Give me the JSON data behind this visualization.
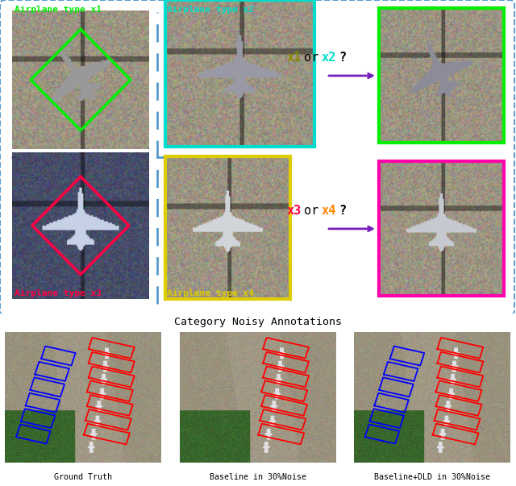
{
  "title_noisy": "Category Noisy Annotations",
  "label_x1": "Airplane type x1",
  "label_x2": "Airplane type x2",
  "label_x3": "Airplane type x3",
  "label_x4": "Airplane type x4",
  "caption1": "Ground Truth",
  "caption2": "Baseline in 30%Noise",
  "caption3": "Baseline+DLD in 30%Noise",
  "color_green": "#00ee00",
  "color_cyan": "#00ddcc",
  "color_red": "#ff0044",
  "color_yellow_border": "#ddcc00",
  "color_magenta": "#ff00aa",
  "color_purple": "#7722bb",
  "color_orange": "#ff8800",
  "color_olive": "#888800",
  "color_blue_dash": "#5599cc",
  "fig_width": 6.4,
  "fig_height": 6.03
}
